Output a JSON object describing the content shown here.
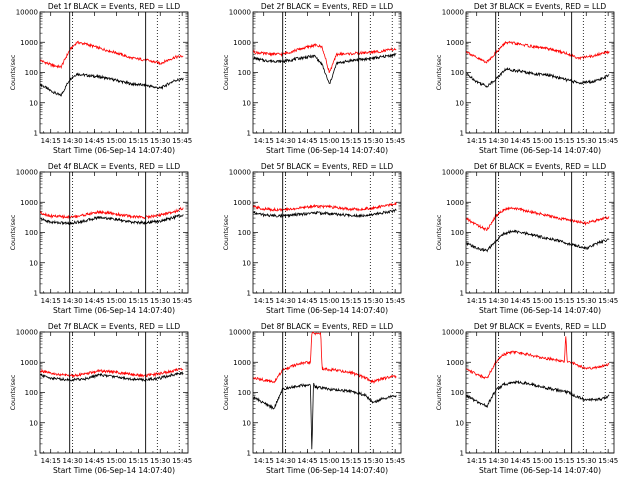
{
  "figure": {
    "x_axis_label": "Start Time (06-Sep-14 14:07:40)",
    "y_axis_label": "Counts/sec"
  },
  "series_colors": {
    "events": "#000000",
    "lld": "#ff0000"
  },
  "chart_data": [
    {
      "type": "line",
      "title": "Det 1f BLACK = Events, RED = LLD",
      "xlabel": "Start Time (06-Sep-14 14:07:40)",
      "ylabel": "Counts/sec",
      "y_scale": "log",
      "xlim": [
        "14:07:40",
        "15:49:00"
      ],
      "ylim": [
        1,
        10000
      ],
      "x_ticks": [
        "14:15",
        "14:30",
        "14:45",
        "15:00",
        "15:15",
        "15:30",
        "15:45"
      ],
      "y_ticks": [
        "1",
        "10",
        "100",
        "1000",
        "10000"
      ],
      "markers": {
        "solid": [
          "14:28",
          "15:20"
        ],
        "dotted": [
          "14:30",
          "15:28",
          "15:43"
        ]
      },
      "series": [
        {
          "color": "#000000",
          "x": [
            "14:08",
            "14:15",
            "14:22",
            "14:28",
            "14:33",
            "14:40",
            "14:50",
            "15:00",
            "15:10",
            "15:20",
            "15:30",
            "15:40",
            "15:46"
          ],
          "values": [
            40,
            25,
            17,
            60,
            90,
            80,
            70,
            55,
            42,
            38,
            30,
            55,
            60
          ]
        },
        {
          "color": "#ff0000",
          "x": [
            "14:08",
            "14:15",
            "14:22",
            "14:28",
            "14:33",
            "14:40",
            "14:50",
            "15:00",
            "15:10",
            "15:20",
            "15:30",
            "15:40",
            "15:46"
          ],
          "values": [
            250,
            180,
            150,
            550,
            1000,
            850,
            600,
            450,
            300,
            260,
            200,
            320,
            350
          ]
        }
      ]
    },
    {
      "type": "line",
      "title": "Det 2f BLACK = Events, RED = LLD",
      "xlabel": "Start Time (06-Sep-14 14:07:40)",
      "ylabel": "Counts/sec",
      "y_scale": "log",
      "xlim": [
        "14:07:40",
        "15:49:00"
      ],
      "ylim": [
        1,
        10000
      ],
      "x_ticks": [
        "14:15",
        "14:30",
        "14:45",
        "15:00",
        "15:15",
        "15:30",
        "15:45"
      ],
      "y_ticks": [
        "1",
        "10",
        "100",
        "1000",
        "10000"
      ],
      "markers": {
        "solid": [
          "14:28",
          "15:20"
        ],
        "dotted": [
          "14:30",
          "15:28",
          "15:43"
        ]
      },
      "series": [
        {
          "color": "#000000",
          "x": [
            "14:08",
            "14:15",
            "14:28",
            "14:40",
            "14:50",
            "14:55",
            "15:00",
            "15:05",
            "15:15",
            "15:25",
            "15:35",
            "15:46"
          ],
          "values": [
            300,
            250,
            230,
            300,
            350,
            180,
            40,
            200,
            250,
            280,
            320,
            400
          ]
        },
        {
          "color": "#ff0000",
          "x": [
            "14:08",
            "14:15",
            "14:28",
            "14:40",
            "14:50",
            "14:55",
            "15:00",
            "15:05",
            "15:15",
            "15:25",
            "15:35",
            "15:46"
          ],
          "values": [
            480,
            420,
            400,
            600,
            800,
            700,
            100,
            400,
            420,
            450,
            500,
            600
          ]
        }
      ]
    },
    {
      "type": "line",
      "title": "Det 3f BLACK = Events, RED = LLD",
      "xlabel": "Start Time (06-Sep-14 14:07:40)",
      "ylabel": "Counts/sec",
      "y_scale": "log",
      "xlim": [
        "14:07:40",
        "15:49:00"
      ],
      "ylim": [
        1,
        10000
      ],
      "x_ticks": [
        "14:15",
        "14:30",
        "14:45",
        "15:00",
        "15:15",
        "15:30",
        "15:45"
      ],
      "y_ticks": [
        "1",
        "10",
        "100",
        "1000",
        "10000"
      ],
      "markers": {
        "solid": [
          "14:28",
          "15:20"
        ],
        "dotted": [
          "14:30",
          "15:28",
          "15:43"
        ]
      },
      "series": [
        {
          "color": "#000000",
          "x": [
            "14:08",
            "14:15",
            "14:22",
            "14:28",
            "14:35",
            "14:45",
            "14:55",
            "15:05",
            "15:15",
            "15:25",
            "15:35",
            "15:46"
          ],
          "values": [
            90,
            50,
            35,
            60,
            130,
            110,
            90,
            80,
            60,
            45,
            50,
            80
          ]
        },
        {
          "color": "#ff0000",
          "x": [
            "14:08",
            "14:15",
            "14:22",
            "14:28",
            "14:35",
            "14:45",
            "14:55",
            "15:05",
            "15:15",
            "15:25",
            "15:35",
            "15:46"
          ],
          "values": [
            500,
            300,
            220,
            450,
            1000,
            850,
            700,
            600,
            450,
            300,
            350,
            500
          ]
        }
      ]
    },
    {
      "type": "line",
      "title": "Det 4f BLACK = Events, RED = LLD",
      "xlabel": "Start Time (06-Sep-14 14:07:40)",
      "ylabel": "Counts/sec",
      "y_scale": "log",
      "xlim": [
        "14:07:40",
        "15:49:00"
      ],
      "ylim": [
        1,
        10000
      ],
      "x_ticks": [
        "14:15",
        "14:30",
        "14:45",
        "15:00",
        "15:15",
        "15:30",
        "15:45"
      ],
      "y_ticks": [
        "1",
        "10",
        "100",
        "1000",
        "10000"
      ],
      "markers": {
        "solid": [
          "14:28",
          "15:20"
        ],
        "dotted": [
          "14:30",
          "15:28",
          "15:43"
        ]
      },
      "series": [
        {
          "color": "#000000",
          "x": [
            "14:08",
            "14:15",
            "14:28",
            "14:38",
            "14:48",
            "14:58",
            "15:10",
            "15:20",
            "15:30",
            "15:40",
            "15:46"
          ],
          "values": [
            280,
            220,
            200,
            240,
            320,
            280,
            220,
            210,
            240,
            320,
            400
          ]
        },
        {
          "color": "#ff0000",
          "x": [
            "14:08",
            "14:15",
            "14:28",
            "14:38",
            "14:48",
            "14:58",
            "15:10",
            "15:20",
            "15:30",
            "15:40",
            "15:46"
          ],
          "values": [
            450,
            350,
            320,
            380,
            480,
            420,
            340,
            320,
            380,
            500,
            650
          ]
        }
      ]
    },
    {
      "type": "line",
      "title": "Det 5f BLACK = Events, RED = LLD",
      "xlabel": "Start Time (06-Sep-14 14:07:40)",
      "ylabel": "Counts/sec",
      "y_scale": "log",
      "xlim": [
        "14:07:40",
        "15:49:00"
      ],
      "ylim": [
        1,
        10000
      ],
      "x_ticks": [
        "14:15",
        "14:30",
        "14:45",
        "15:00",
        "15:15",
        "15:30",
        "15:45"
      ],
      "y_ticks": [
        "1",
        "10",
        "100",
        "1000",
        "10000"
      ],
      "markers": {
        "solid": [
          "14:28"
        ],
        "dotted": [
          "14:30",
          "15:28",
          "15:43"
        ]
      },
      "series": [
        {
          "color": "#000000",
          "x": [
            "14:08",
            "14:15",
            "14:28",
            "14:40",
            "14:50",
            "15:00",
            "15:10",
            "15:20",
            "15:30",
            "15:40",
            "15:46"
          ],
          "values": [
            450,
            380,
            350,
            400,
            450,
            420,
            380,
            360,
            400,
            480,
            550
          ]
        },
        {
          "color": "#ff0000",
          "x": [
            "14:08",
            "14:15",
            "14:28",
            "14:40",
            "14:50",
            "15:00",
            "15:10",
            "15:20",
            "15:30",
            "15:40",
            "15:46"
          ],
          "values": [
            700,
            600,
            550,
            650,
            750,
            700,
            620,
            580,
            650,
            800,
            900
          ]
        }
      ]
    },
    {
      "type": "line",
      "title": "Det 6f BLACK = Events, RED = LLD",
      "xlabel": "Start Time (06-Sep-14 14:07:40)",
      "ylabel": "Counts/sec",
      "y_scale": "log",
      "xlim": [
        "14:07:40",
        "15:49:00"
      ],
      "ylim": [
        1,
        10000
      ],
      "x_ticks": [
        "14:15",
        "14:30",
        "14:45",
        "15:00",
        "15:15",
        "15:30",
        "15:45"
      ],
      "y_ticks": [
        "1",
        "10",
        "100",
        "1000",
        "10000"
      ],
      "markers": {
        "solid": [
          "14:28",
          "15:20"
        ],
        "dotted": [
          "14:30",
          "15:28",
          "15:43"
        ]
      },
      "series": [
        {
          "color": "#000000",
          "x": [
            "14:08",
            "14:15",
            "14:22",
            "14:28",
            "14:33",
            "14:40",
            "14:50",
            "15:00",
            "15:10",
            "15:20",
            "15:30",
            "15:40",
            "15:46"
          ],
          "values": [
            45,
            30,
            25,
            50,
            90,
            110,
            90,
            70,
            55,
            40,
            30,
            50,
            60
          ]
        },
        {
          "color": "#ff0000",
          "x": [
            "14:08",
            "14:15",
            "14:22",
            "14:28",
            "14:33",
            "14:40",
            "14:50",
            "15:00",
            "15:10",
            "15:20",
            "15:30",
            "15:40",
            "15:46"
          ],
          "values": [
            280,
            180,
            120,
            350,
            550,
            650,
            500,
            400,
            300,
            250,
            200,
            280,
            320
          ]
        }
      ]
    },
    {
      "type": "line",
      "title": "Det 7f BLACK = Events, RED = LLD",
      "xlabel": "Start Time (06-Sep-14 14:07:40)",
      "ylabel": "Counts/sec",
      "y_scale": "log",
      "xlim": [
        "14:07:40",
        "15:49:00"
      ],
      "ylim": [
        1,
        10000
      ],
      "x_ticks": [
        "14:15",
        "14:30",
        "14:45",
        "15:00",
        "15:15",
        "15:30",
        "15:45"
      ],
      "y_ticks": [
        "1",
        "10",
        "100",
        "1000",
        "10000"
      ],
      "markers": {
        "solid": [
          "14:28",
          "15:20"
        ],
        "dotted": [
          "14:30",
          "15:28",
          "15:43"
        ]
      },
      "series": [
        {
          "color": "#000000",
          "x": [
            "14:08",
            "14:15",
            "14:28",
            "14:38",
            "14:48",
            "14:58",
            "15:10",
            "15:20",
            "15:30",
            "15:40",
            "15:46"
          ],
          "values": [
            380,
            300,
            260,
            280,
            380,
            340,
            280,
            260,
            300,
            400,
            450
          ]
        },
        {
          "color": "#ff0000",
          "x": [
            "14:08",
            "14:15",
            "14:28",
            "14:38",
            "14:48",
            "14:58",
            "15:10",
            "15:20",
            "15:30",
            "15:40",
            "15:46"
          ],
          "values": [
            520,
            420,
            360,
            400,
            520,
            480,
            400,
            360,
            420,
            540,
            620
          ]
        }
      ]
    },
    {
      "type": "line",
      "title": "Det 8f BLACK = Events, RED = LLD",
      "xlabel": "Start Time (06-Sep-14 14:07:40)",
      "ylabel": "Counts/sec",
      "y_scale": "log",
      "xlim": [
        "14:07:40",
        "15:49:00"
      ],
      "ylim": [
        1,
        10000
      ],
      "x_ticks": [
        "14:15",
        "14:30",
        "14:45",
        "15:00",
        "15:15",
        "15:30",
        "15:45"
      ],
      "y_ticks": [
        "1",
        "10",
        "100",
        "1000",
        "10000"
      ],
      "markers": {
        "solid": [
          "14:28",
          "15:20"
        ],
        "dotted": [
          "14:30",
          "15:28",
          "15:43"
        ]
      },
      "series": [
        {
          "color": "#000000",
          "x": [
            "14:08",
            "14:15",
            "14:22",
            "14:28",
            "14:33",
            "14:40",
            "14:47",
            "14:48",
            "14:49",
            "14:50",
            "14:55",
            "15:05",
            "15:15",
            "15:25",
            "15:30",
            "15:35",
            "15:46"
          ],
          "values": [
            70,
            45,
            30,
            130,
            150,
            170,
            180,
            1,
            200,
            150,
            140,
            120,
            110,
            80,
            45,
            60,
            80
          ]
        },
        {
          "color": "#ff0000",
          "x": [
            "14:08",
            "14:15",
            "14:22",
            "14:28",
            "14:33",
            "14:40",
            "14:47",
            "14:48",
            "14:54",
            "14:55",
            "15:05",
            "15:15",
            "15:25",
            "15:30",
            "15:35",
            "15:46"
          ],
          "values": [
            300,
            260,
            220,
            550,
            700,
            900,
            1000,
            9000,
            9000,
            600,
            550,
            450,
            300,
            220,
            280,
            350
          ]
        }
      ]
    },
    {
      "type": "line",
      "title": "Det 9f BLACK = Events, RED = LLD",
      "xlabel": "Start Time (06-Sep-14 14:07:40)",
      "ylabel": "Counts/sec",
      "y_scale": "log",
      "xlim": [
        "14:07:40",
        "15:49:00"
      ],
      "ylim": [
        1,
        10000
      ],
      "x_ticks": [
        "14:15",
        "14:30",
        "14:45",
        "15:00",
        "15:15",
        "15:30",
        "15:45"
      ],
      "y_ticks": [
        "1",
        "10",
        "100",
        "1000",
        "10000"
      ],
      "markers": {
        "solid": [
          "14:28",
          "15:20"
        ],
        "dotted": [
          "14:30",
          "15:28",
          "15:43"
        ]
      },
      "series": [
        {
          "color": "#000000",
          "x": [
            "14:08",
            "14:15",
            "14:22",
            "14:28",
            "14:33",
            "14:40",
            "14:50",
            "15:00",
            "15:10",
            "15:18",
            "15:22",
            "15:30",
            "15:40",
            "15:46"
          ],
          "values": [
            80,
            50,
            35,
            120,
            180,
            220,
            200,
            150,
            120,
            100,
            80,
            55,
            60,
            80
          ]
        },
        {
          "color": "#ff0000",
          "x": [
            "14:08",
            "14:15",
            "14:22",
            "14:28",
            "14:33",
            "14:40",
            "14:50",
            "15:00",
            "15:10",
            "15:15",
            "15:16",
            "15:17",
            "15:22",
            "15:30",
            "15:40",
            "15:46"
          ],
          "values": [
            600,
            400,
            300,
            1000,
            1800,
            2200,
            1800,
            1400,
            1200,
            1000,
            8000,
            1000,
            900,
            600,
            700,
            900
          ]
        }
      ]
    }
  ]
}
